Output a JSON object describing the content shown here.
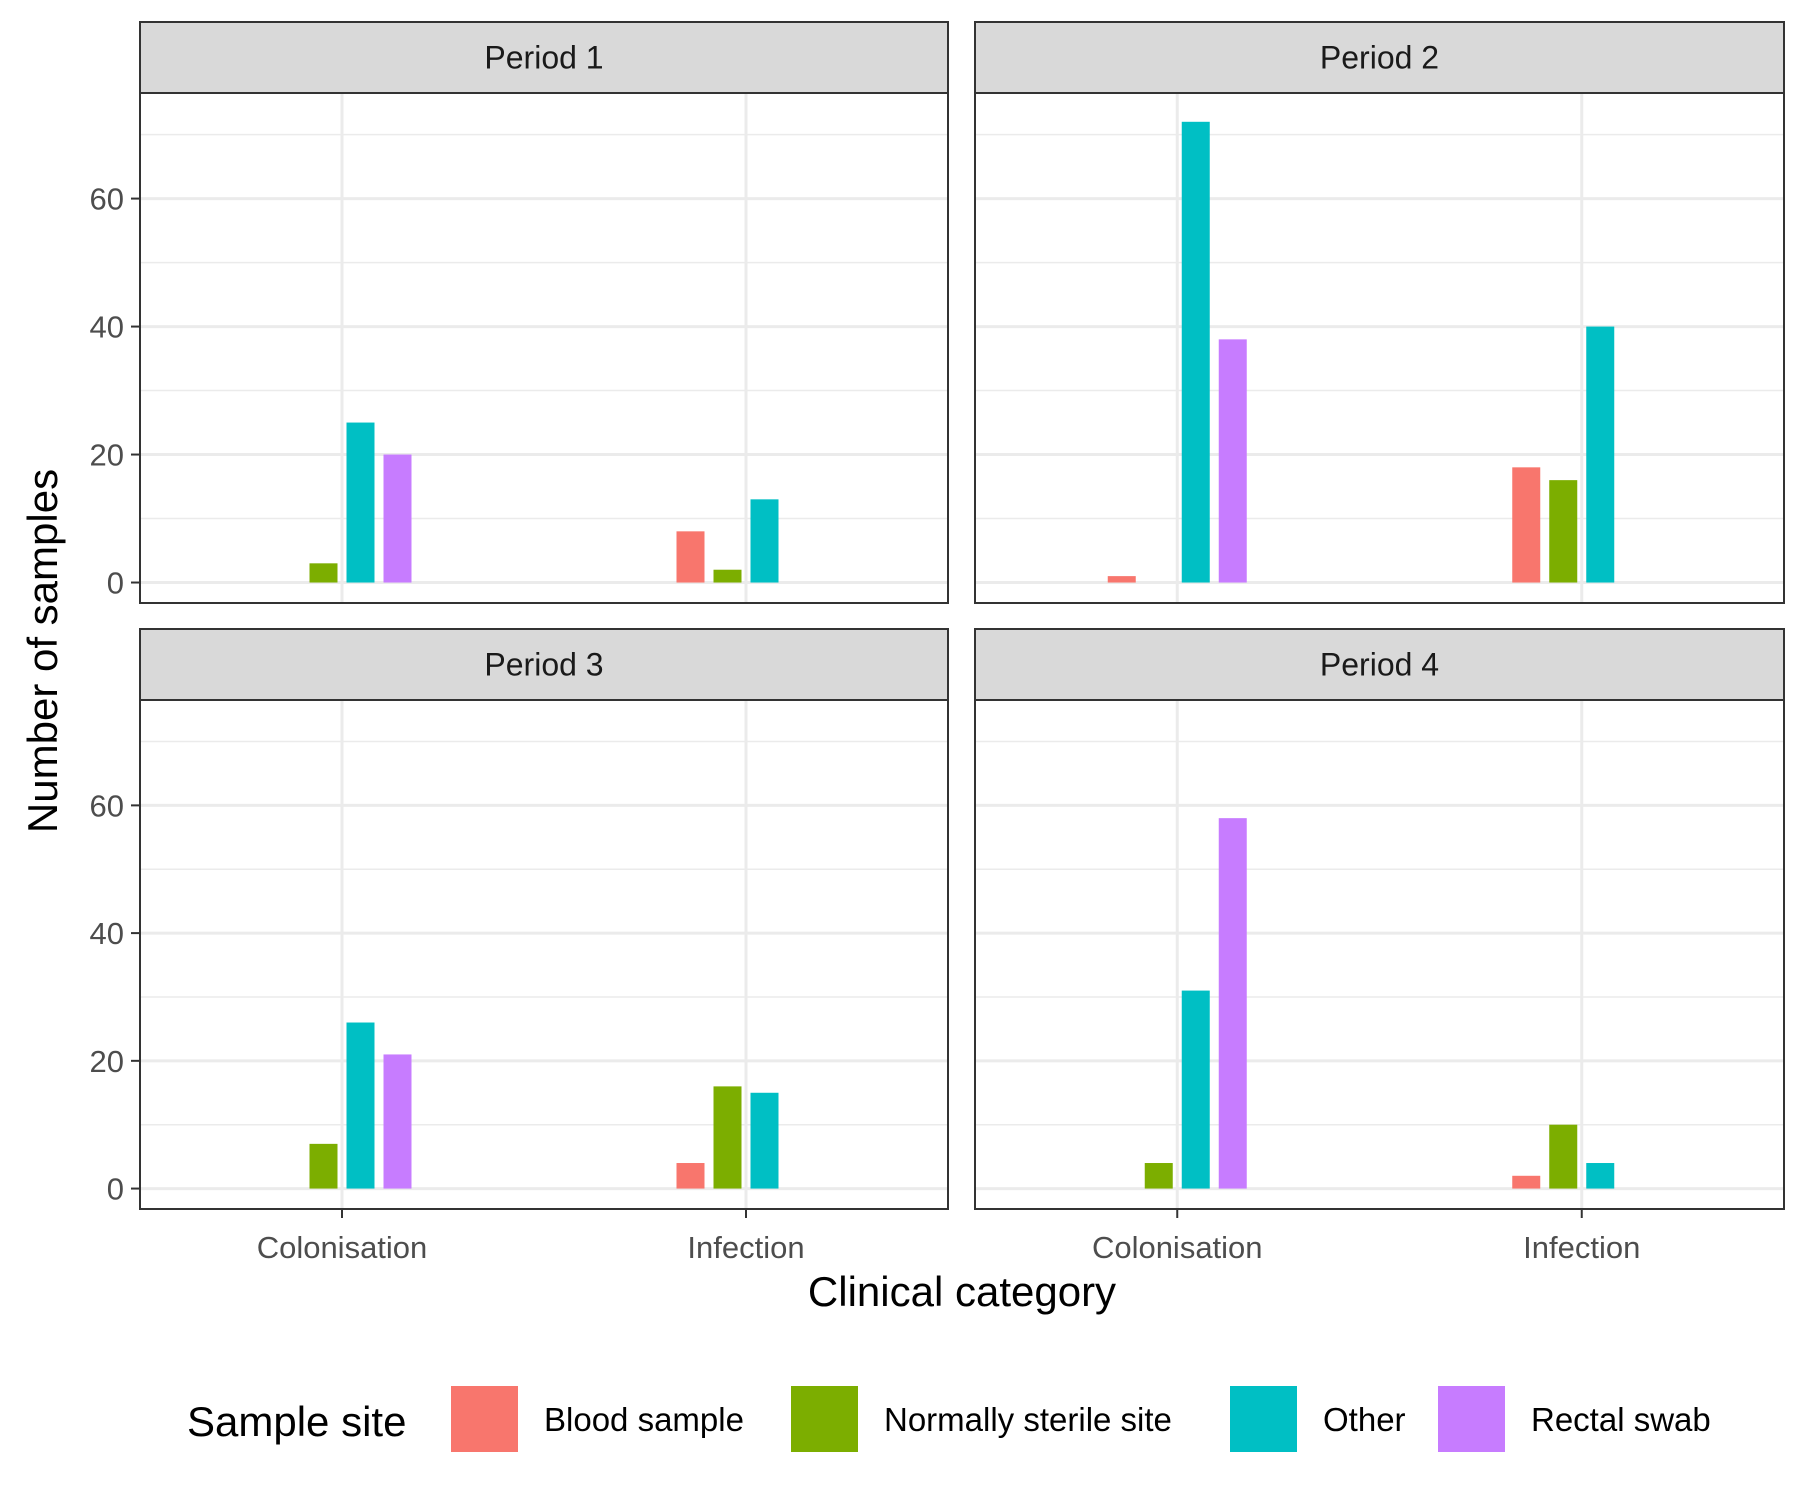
{
  "chart_data": {
    "type": "bar",
    "layout": "facet-grid-2x2",
    "xlabel": "Clinical category",
    "ylabel": "Number of samples",
    "ylim": [
      -3.2,
      76.5
    ],
    "yticks": [
      0,
      20,
      40,
      60
    ],
    "ytick_labels": [
      "0",
      "20",
      "40",
      "60"
    ],
    "grid": true,
    "categories": [
      "Colonisation",
      "Infection"
    ],
    "legend": {
      "title": "Sample site",
      "placement": "bottom",
      "entries": [
        {
          "name": "Blood sample",
          "color": "#F8766D"
        },
        {
          "name": "Normally sterile site",
          "color": "#7CAE00"
        },
        {
          "name": "Other",
          "color": "#00BFC4"
        },
        {
          "name": "Rectal swab",
          "color": "#C77CFF"
        }
      ]
    },
    "panels": [
      {
        "title": "Period 1",
        "series": [
          {
            "name": "Blood sample",
            "values": [
              0,
              8
            ]
          },
          {
            "name": "Normally sterile site",
            "values": [
              3,
              2
            ]
          },
          {
            "name": "Other",
            "values": [
              25,
              13
            ]
          },
          {
            "name": "Rectal swab",
            "values": [
              20,
              0
            ]
          }
        ]
      },
      {
        "title": "Period 2",
        "series": [
          {
            "name": "Blood sample",
            "values": [
              1,
              18
            ]
          },
          {
            "name": "Normally sterile site",
            "values": [
              0,
              16
            ]
          },
          {
            "name": "Other",
            "values": [
              72,
              40
            ]
          },
          {
            "name": "Rectal swab",
            "values": [
              38,
              0
            ]
          }
        ]
      },
      {
        "title": "Period 3",
        "series": [
          {
            "name": "Blood sample",
            "values": [
              0,
              4
            ]
          },
          {
            "name": "Normally sterile site",
            "values": [
              7,
              16
            ]
          },
          {
            "name": "Other",
            "values": [
              26,
              15
            ]
          },
          {
            "name": "Rectal swab",
            "values": [
              21,
              0
            ]
          }
        ]
      },
      {
        "title": "Period 4",
        "series": [
          {
            "name": "Blood sample",
            "values": [
              0,
              2
            ]
          },
          {
            "name": "Normally sterile site",
            "values": [
              4,
              10
            ]
          },
          {
            "name": "Other",
            "values": [
              31,
              4
            ]
          },
          {
            "name": "Rectal swab",
            "values": [
              58,
              0
            ]
          }
        ]
      }
    ]
  }
}
